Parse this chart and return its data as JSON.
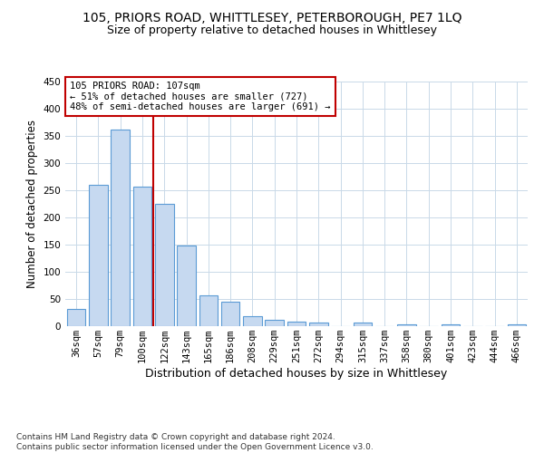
{
  "title1": "105, PRIORS ROAD, WHITTLESEY, PETERBOROUGH, PE7 1LQ",
  "title2": "Size of property relative to detached houses in Whittlesey",
  "xlabel": "Distribution of detached houses by size in Whittlesey",
  "ylabel": "Number of detached properties",
  "footnote": "Contains HM Land Registry data © Crown copyright and database right 2024.\nContains public sector information licensed under the Open Government Licence v3.0.",
  "categories": [
    "36sqm",
    "57sqm",
    "79sqm",
    "100sqm",
    "122sqm",
    "143sqm",
    "165sqm",
    "186sqm",
    "208sqm",
    "229sqm",
    "251sqm",
    "272sqm",
    "294sqm",
    "315sqm",
    "337sqm",
    "358sqm",
    "380sqm",
    "401sqm",
    "423sqm",
    "444sqm",
    "466sqm"
  ],
  "values": [
    32,
    260,
    362,
    257,
    225,
    148,
    57,
    45,
    18,
    11,
    9,
    6,
    0,
    6,
    0,
    3,
    0,
    3,
    0,
    0,
    3
  ],
  "bar_color": "#c6d9f0",
  "bar_edge_color": "#5b9bd5",
  "vline_color": "#c00000",
  "annotation_text": "105 PRIORS ROAD: 107sqm\n← 51% of detached houses are smaller (727)\n48% of semi-detached houses are larger (691) →",
  "annotation_box_color": "#ffffff",
  "annotation_box_edge": "#c00000",
  "background_color": "#ffffff",
  "grid_color": "#c9d9e8",
  "ylim": [
    0,
    450
  ],
  "title1_fontsize": 10,
  "title2_fontsize": 9,
  "xlabel_fontsize": 9,
  "ylabel_fontsize": 8.5,
  "tick_fontsize": 7.5,
  "footnote_fontsize": 6.5
}
